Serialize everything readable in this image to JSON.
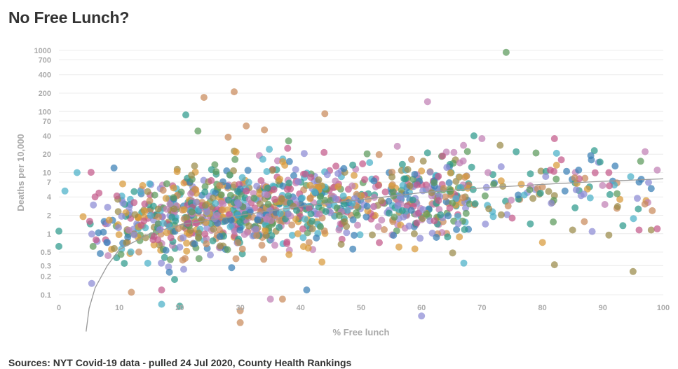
{
  "title": "No Free Lunch?",
  "source": "Sources: NYT Covid-19 data - pulled 24 Jul 2020, County Health Rankings",
  "chart_data": {
    "type": "scatter",
    "xlabel": "% Free lunch",
    "ylabel": "Deaths per 10,000",
    "xlim": [
      0,
      100
    ],
    "ylim": [
      0.1,
      1000
    ],
    "yscale": "log",
    "x_ticks": [
      0,
      10,
      20,
      30,
      40,
      50,
      60,
      70,
      80,
      90,
      100
    ],
    "y_ticks": [
      0.1,
      0.2,
      0.3,
      0.5,
      1,
      2,
      4,
      7,
      10,
      20,
      40,
      70,
      100,
      200,
      400,
      700,
      1000
    ],
    "y_tick_labels": [
      "0.1",
      "0.2",
      "0.3",
      "0.5",
      "1",
      "2",
      "4",
      "7",
      "10",
      "20",
      "40",
      "70",
      "100",
      "200",
      "400",
      "700",
      "1000"
    ],
    "grid": true,
    "trendline": {
      "type": "logarithmic",
      "color": "#999999",
      "points": [
        [
          4.5,
          0.025
        ],
        [
          5,
          0.06
        ],
        [
          6,
          0.13
        ],
        [
          8,
          0.3
        ],
        [
          10,
          0.55
        ],
        [
          15,
          1.0
        ],
        [
          20,
          1.4
        ],
        [
          30,
          2.0
        ],
        [
          40,
          2.8
        ],
        [
          50,
          3.6
        ],
        [
          60,
          4.7
        ],
        [
          70,
          5.6
        ],
        [
          80,
          6.4
        ],
        [
          90,
          7.2
        ],
        [
          100,
          7.9
        ]
      ]
    },
    "palette": [
      "#2e9a8c",
      "#3a7fb6",
      "#8c8ad4",
      "#c07fb4",
      "#9a8a4a",
      "#5b9a5b",
      "#c98a5b",
      "#c45a8a",
      "#4ab0c8",
      "#d89a3a"
    ],
    "highlighted_points": [
      {
        "x": 74,
        "y": 930,
        "color": "#5b9a5b"
      },
      {
        "x": 29,
        "y": 210,
        "color": "#c98a5b"
      },
      {
        "x": 24,
        "y": 170,
        "color": "#c98a5b"
      },
      {
        "x": 61,
        "y": 145,
        "color": "#c07fb4"
      },
      {
        "x": 44,
        "y": 92,
        "color": "#c98a5b"
      },
      {
        "x": 21,
        "y": 88,
        "color": "#2e9a8c"
      },
      {
        "x": 31,
        "y": 58,
        "color": "#c98a5b"
      },
      {
        "x": 34,
        "y": 50,
        "color": "#c98a5b"
      },
      {
        "x": 23,
        "y": 48,
        "color": "#5b9a5b"
      },
      {
        "x": 28,
        "y": 38,
        "color": "#c98a5b"
      },
      {
        "x": 38,
        "y": 33,
        "color": "#5b9a5b"
      },
      {
        "x": 70,
        "y": 36,
        "color": "#c07fb4"
      },
      {
        "x": 82,
        "y": 36,
        "color": "#c45a8a"
      },
      {
        "x": 73,
        "y": 28,
        "color": "#9a8a4a"
      },
      {
        "x": 97,
        "y": 22,
        "color": "#c07fb4"
      },
      {
        "x": 88,
        "y": 19,
        "color": "#3a7fb6"
      },
      {
        "x": 56,
        "y": 27,
        "color": "#c07fb4"
      },
      {
        "x": 61,
        "y": 21,
        "color": "#2e9a8c"
      },
      {
        "x": 99,
        "y": 11,
        "color": "#c07fb4"
      },
      {
        "x": 91,
        "y": 10,
        "color": "#c45a8a"
      },
      {
        "x": 96,
        "y": 7,
        "color": "#3a7fb6"
      },
      {
        "x": 98,
        "y": 5.5,
        "color": "#3a7fb6"
      },
      {
        "x": 1,
        "y": 5,
        "color": "#4ab0c8"
      },
      {
        "x": 3,
        "y": 10,
        "color": "#4ab0c8"
      },
      {
        "x": 0,
        "y": 1.1,
        "color": "#2e9a8c"
      },
      {
        "x": 0,
        "y": 0.62,
        "color": "#2e9a8c"
      },
      {
        "x": 4,
        "y": 1.9,
        "color": "#d89a3a"
      },
      {
        "x": 12,
        "y": 0.11,
        "color": "#c98a5b"
      },
      {
        "x": 17,
        "y": 0.12,
        "color": "#c45a8a"
      },
      {
        "x": 17,
        "y": 0.07,
        "color": "#4ab0c8"
      },
      {
        "x": 20,
        "y": 0.065,
        "color": "#2e9a8c"
      },
      {
        "x": 30,
        "y": 0.055,
        "color": "#c98a5b"
      },
      {
        "x": 60,
        "y": 0.045,
        "color": "#8c8ad4"
      },
      {
        "x": 23,
        "y": 0.028,
        "color": "#c98a5b"
      },
      {
        "x": 30,
        "y": 0.035,
        "color": "#c98a5b"
      },
      {
        "x": 41,
        "y": 0.12,
        "color": "#3a7fb6"
      },
      {
        "x": 35,
        "y": 0.085,
        "color": "#c07fb4"
      },
      {
        "x": 37,
        "y": 0.085,
        "color": "#c98a5b"
      },
      {
        "x": 82,
        "y": 0.31,
        "color": "#9a8a4a"
      },
      {
        "x": 95,
        "y": 0.24,
        "color": "#9a8a4a"
      },
      {
        "x": 67,
        "y": 0.33,
        "color": "#4ab0c8"
      },
      {
        "x": 91,
        "y": 0.95,
        "color": "#9a8a4a"
      },
      {
        "x": 98,
        "y": 1.15,
        "color": "#9a8a4a"
      },
      {
        "x": 96,
        "y": 1.15,
        "color": "#c45a8a"
      },
      {
        "x": 99,
        "y": 1.2,
        "color": "#c45a8a"
      },
      {
        "x": 85,
        "y": 1.15,
        "color": "#9a8a4a"
      },
      {
        "x": 78,
        "y": 1.45,
        "color": "#2e9a8c"
      },
      {
        "x": 75,
        "y": 1.8,
        "color": "#c45a8a"
      },
      {
        "x": 76,
        "y": 4.3,
        "color": "#3a7fb6"
      },
      {
        "x": 77,
        "y": 4.3,
        "color": "#4ab0c8"
      },
      {
        "x": 71,
        "y": 10,
        "color": "#c07fb4"
      },
      {
        "x": 84,
        "y": 10.5,
        "color": "#3a7fb6"
      },
      {
        "x": 86,
        "y": 11,
        "color": "#3a7fb6"
      }
    ],
    "bulk_points": {
      "count": 1100,
      "x_range": [
        5,
        75
      ],
      "y_range": [
        0.15,
        25
      ],
      "center": 2.5
    }
  }
}
